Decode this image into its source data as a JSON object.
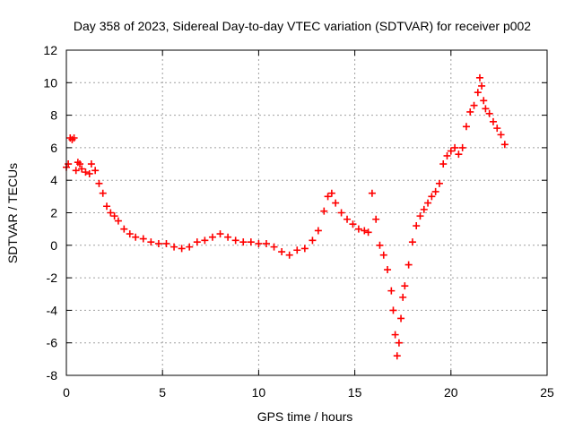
{
  "chart_data": {
    "type": "scatter",
    "title": "Day 358 of 2023, Sidereal Day-to-day VTEC variation (SDTVAR) for receiver p002",
    "xlabel": "GPS time / hours",
    "ylabel": "SDTVAR / TECUs",
    "xlim": [
      0,
      25
    ],
    "ylim": [
      -8,
      12
    ],
    "xticks": [
      "0",
      "5",
      "10",
      "15",
      "20",
      "25"
    ],
    "yticks": [
      "-8",
      "-6",
      "-4",
      "-2",
      "0",
      "2",
      "4",
      "6",
      "8",
      "10",
      "12"
    ],
    "grid": true,
    "marker": "+",
    "color": "#ff0000",
    "series": [
      {
        "name": "",
        "x": [
          0.0,
          0.1,
          0.2,
          0.3,
          0.4,
          0.5,
          0.6,
          0.7,
          0.8,
          1.0,
          1.2,
          1.3,
          1.5,
          1.7,
          1.9,
          2.1,
          2.3,
          2.5,
          2.7,
          3.0,
          3.3,
          3.6,
          4.0,
          4.4,
          4.8,
          5.2,
          5.6,
          6.0,
          6.4,
          6.8,
          7.2,
          7.6,
          8.0,
          8.4,
          8.8,
          9.2,
          9.6,
          10.0,
          10.4,
          10.8,
          11.2,
          11.6,
          12.0,
          12.4,
          12.8,
          13.1,
          13.4,
          13.6,
          13.8,
          14.0,
          14.3,
          14.6,
          14.9,
          15.2,
          15.5,
          15.7,
          15.9,
          16.1,
          16.3,
          16.5,
          16.7,
          16.9,
          17.0,
          17.1,
          17.2,
          17.3,
          17.4,
          17.5,
          17.6,
          17.8,
          18.0,
          18.2,
          18.4,
          18.6,
          18.8,
          19.0,
          19.2,
          19.4,
          19.6,
          19.8,
          20.0,
          20.2,
          20.4,
          20.6,
          20.8,
          21.0,
          21.2,
          21.4,
          21.5,
          21.6,
          21.7,
          21.8,
          22.0,
          22.2,
          22.4,
          22.6,
          22.8
        ],
        "y": [
          4.8,
          5.0,
          6.6,
          6.5,
          6.6,
          4.6,
          5.1,
          5.0,
          4.7,
          4.5,
          4.4,
          5.0,
          4.6,
          3.8,
          3.2,
          2.4,
          2.0,
          1.8,
          1.5,
          1.0,
          0.7,
          0.5,
          0.4,
          0.2,
          0.1,
          0.1,
          -0.1,
          -0.2,
          -0.1,
          0.2,
          0.3,
          0.5,
          0.7,
          0.5,
          0.3,
          0.2,
          0.2,
          0.1,
          0.1,
          -0.1,
          -0.4,
          -0.6,
          -0.3,
          -0.2,
          0.3,
          0.9,
          2.1,
          3.0,
          3.2,
          2.6,
          2.0,
          1.6,
          1.3,
          1.0,
          0.9,
          0.8,
          3.2,
          1.6,
          0.0,
          -0.6,
          -1.5,
          -2.8,
          -4.0,
          -5.5,
          -6.8,
          -6.0,
          -4.5,
          -3.2,
          -2.5,
          -1.2,
          0.2,
          1.2,
          1.8,
          2.2,
          2.6,
          3.0,
          3.3,
          3.8,
          5.0,
          5.5,
          5.8,
          6.0,
          5.6,
          6.0,
          7.3,
          8.2,
          8.6,
          9.4,
          10.3,
          9.8,
          8.9,
          8.4,
          8.1,
          7.6,
          7.2,
          6.8,
          6.2
        ]
      }
    ]
  }
}
